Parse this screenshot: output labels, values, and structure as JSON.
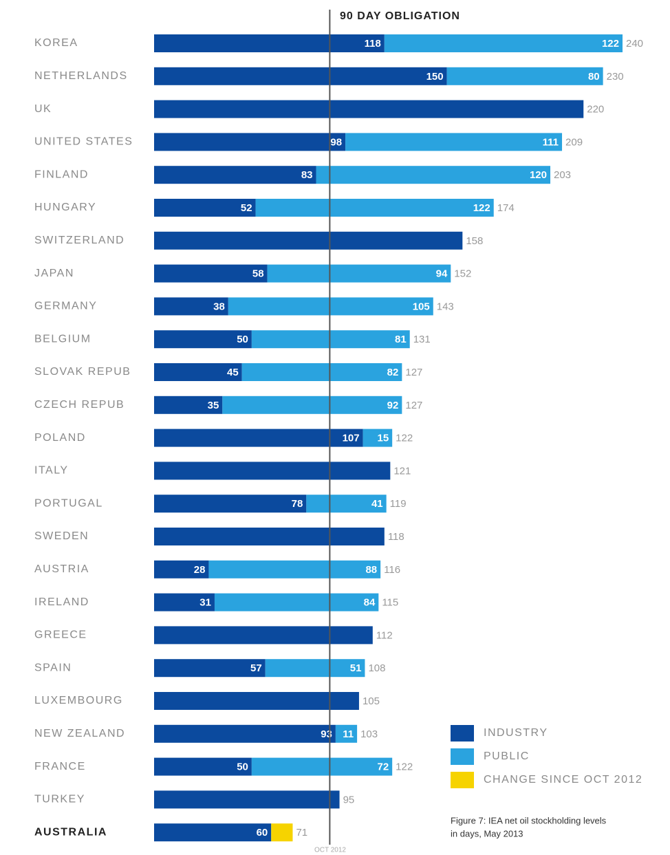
{
  "chart_data": {
    "type": "stacked-bar-horizontal",
    "categories": [
      "KOREA",
      "NETHERLANDS",
      "UK",
      "UNITED STATES",
      "FINLAND",
      "HUNGARY",
      "SWITZERLAND",
      "JAPAN",
      "GERMANY",
      "BELGIUM",
      "SLOVAK REPUB",
      "CZECH REPUB",
      "POLAND",
      "ITALY",
      "PORTUGAL",
      "SWEDEN",
      "AUSTRIA",
      "IRELAND",
      "GREECE",
      "SPAIN",
      "LUXEMBOURG",
      "NEW ZEALAND",
      "FRANCE",
      "TURKEY",
      "AUSTRALIA"
    ],
    "series": [
      {
        "name": "INDUSTRY",
        "color": "#0b4a9e",
        "values": [
          118,
          150,
          220,
          98,
          83,
          52,
          158,
          58,
          38,
          50,
          45,
          35,
          107,
          121,
          78,
          118,
          28,
          31,
          112,
          57,
          105,
          93,
          50,
          95,
          60
        ]
      },
      {
        "name": "PUBLIC",
        "color": "#2aa3df",
        "values": [
          122,
          80,
          null,
          111,
          120,
          122,
          null,
          94,
          105,
          81,
          82,
          92,
          15,
          null,
          41,
          null,
          88,
          84,
          null,
          51,
          null,
          11,
          72,
          null,
          null
        ]
      },
      {
        "name": "CHANGE SINCE OCT 2012",
        "color": "#f6d300",
        "values": [
          null,
          null,
          null,
          null,
          null,
          null,
          null,
          null,
          null,
          null,
          null,
          null,
          null,
          null,
          null,
          null,
          null,
          null,
          null,
          null,
          null,
          null,
          null,
          null,
          11
        ]
      }
    ],
    "totals": [
      240,
      230,
      220,
      209,
      203,
      174,
      158,
      152,
      143,
      131,
      127,
      127,
      122,
      121,
      119,
      118,
      116,
      115,
      112,
      108,
      105,
      103,
      122,
      95,
      71
    ],
    "xlim": [
      0,
      240
    ],
    "reference_line": {
      "value": 90,
      "label": "90 DAY OBLIGATION",
      "note": "OCT 2012"
    },
    "caption": [
      "Figure 7: IEA net oil stockholding levels",
      "in days, May 2013"
    ]
  }
}
